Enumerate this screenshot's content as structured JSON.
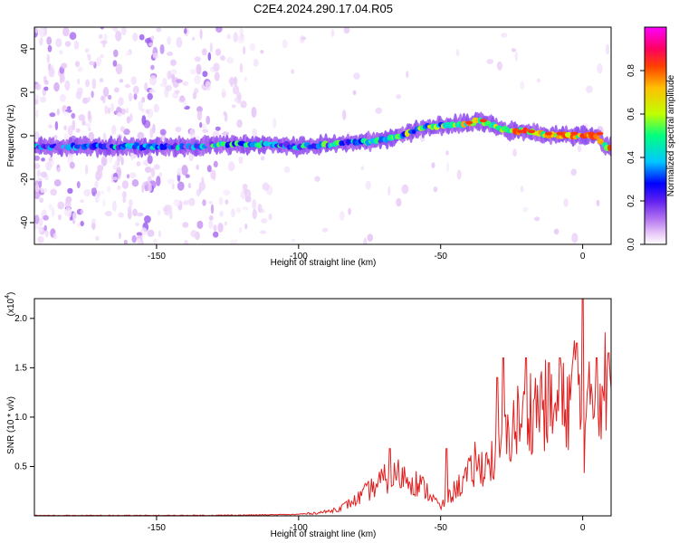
{
  "figure_title": "C2E4.2024.290.17.04.R05",
  "chart_data": [
    {
      "type": "heatmap",
      "title": "C2E4.2024.290.17.04.R05",
      "xlabel": "Height of straight line (km)",
      "ylabel": "Frequency (Hz)",
      "xlim": [
        -193,
        10
      ],
      "ylim": [
        -50,
        50
      ],
      "x_ticks": [
        -150,
        -100,
        -50,
        0
      ],
      "y_ticks": [
        -40,
        -20,
        0,
        20,
        40
      ],
      "colorbar": {
        "label": "Normalized spectral amplitude",
        "range": [
          0,
          1
        ],
        "ticks": [
          0.0,
          0.2,
          0.4,
          0.6,
          0.8
        ],
        "colormap": [
          "#ffffff",
          "#e8c8f8",
          "#b070f0",
          "#6020f0",
          "#0000ff",
          "#00c8ff",
          "#00ff80",
          "#c0ff00",
          "#ffc000",
          "#ff4000",
          "#ff0060",
          "#ff00ff"
        ]
      },
      "ridge": {
        "x_km": [
          -193,
          -170,
          -150,
          -135,
          -130,
          -120,
          -110,
          -100,
          -90,
          -80,
          -70,
          -62,
          -55,
          -48,
          -44,
          -40,
          -36,
          -32,
          -28,
          -24,
          -20,
          -15,
          -10,
          -5,
          0,
          5,
          8
        ],
        "freq_hz": [
          -5,
          -5,
          -5,
          -5,
          -4,
          -4,
          -4,
          -5,
          -4,
          -3,
          -2,
          1,
          4,
          5,
          5,
          6,
          7,
          5,
          3,
          2,
          2,
          1,
          0,
          0,
          0,
          0,
          -5
        ]
      }
    },
    {
      "type": "line",
      "xlabel": "Height of straight line (km)",
      "ylabel": "SNR (10 * v/v)",
      "y_multiplier_label": "(x10",
      "y_multiplier_exp": "4",
      "y_multiplier_close": ")",
      "xlim": [
        -193,
        10
      ],
      "ylim": [
        0,
        2.2
      ],
      "x_ticks": [
        -150,
        -100,
        -50,
        0
      ],
      "y_ticks": [
        0.5,
        1.0,
        1.5,
        2.0
      ],
      "series_color": "#e02020",
      "envelope": {
        "x_km": [
          -193,
          -150,
          -130,
          -110,
          -100,
          -95,
          -90,
          -85,
          -80,
          -75,
          -70,
          -65,
          -60,
          -55,
          -50,
          -45,
          -40,
          -35,
          -30,
          -25,
          -20,
          -15,
          -10,
          -5,
          -2,
          0,
          3,
          5,
          8,
          10
        ],
        "snr": [
          0.003,
          0.003,
          0.005,
          0.01,
          0.015,
          0.025,
          0.04,
          0.08,
          0.15,
          0.25,
          0.35,
          0.4,
          0.35,
          0.25,
          0.08,
          0.25,
          0.4,
          0.5,
          0.55,
          0.85,
          1.0,
          1.1,
          1.0,
          1.1,
          1.4,
          0.6,
          1.2,
          1.2,
          1.3,
          1.4
        ]
      },
      "peaks": {
        "x_km": [
          -68,
          -48,
          -38,
          -30,
          -28,
          -20,
          -12,
          -8,
          -2,
          0,
          5,
          9
        ],
        "snr": [
          0.68,
          0.68,
          0.75,
          1.4,
          1.6,
          1.6,
          1.55,
          1.6,
          1.75,
          2.2,
          1.6,
          1.65
        ]
      }
    }
  ]
}
